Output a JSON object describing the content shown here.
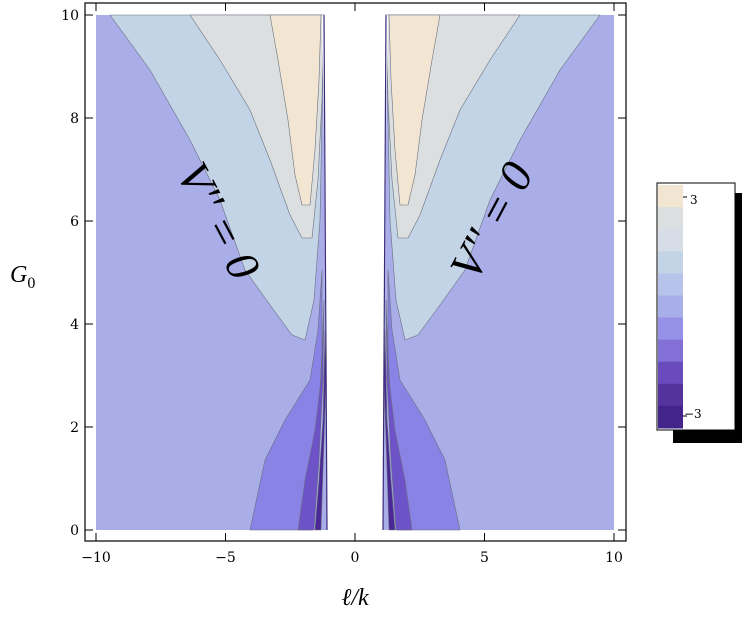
{
  "chart_data": {
    "type": "contour",
    "xlabel": "ℓ/k",
    "ylabel": "G",
    "ylabel_sub": "0",
    "xlim": [
      -10,
      10
    ],
    "ylim": [
      0,
      10
    ],
    "x_ticks": [
      -10,
      -5,
      0,
      5,
      10
    ],
    "x_tick_labels": [
      "−10",
      "−5",
      "0",
      "5",
      "10"
    ],
    "y_ticks": [
      0,
      2,
      4,
      6,
      8,
      10
    ],
    "y_tick_labels": [
      "0",
      "2",
      "4",
      "6",
      "8",
      "10"
    ],
    "annotations": [
      {
        "text": "V'' = 0",
        "side": "left"
      },
      {
        "text": "V'' = 0",
        "side": "right"
      }
    ],
    "legend": {
      "placement": "right",
      "max_label": "3",
      "min_label": "−3",
      "colors_top_to_bottom": [
        "#f2e6d2",
        "#dcdfdf",
        "#d7dde6",
        "#c3d4e7",
        "#b7c3ea",
        "#a7aee9",
        "#9591e8",
        "#8270d6",
        "#6a4bbd",
        "#55339c",
        "#43248a"
      ]
    },
    "bands_outer_to_inner": [
      "#a9aee8",
      "#c3d4e7",
      "#dcdfdf",
      "#f2e6d2"
    ],
    "bands_lower_inner": [
      "#a7aee9",
      "#8a83e6",
      "#6e52c8",
      "#4a2896"
    ]
  }
}
